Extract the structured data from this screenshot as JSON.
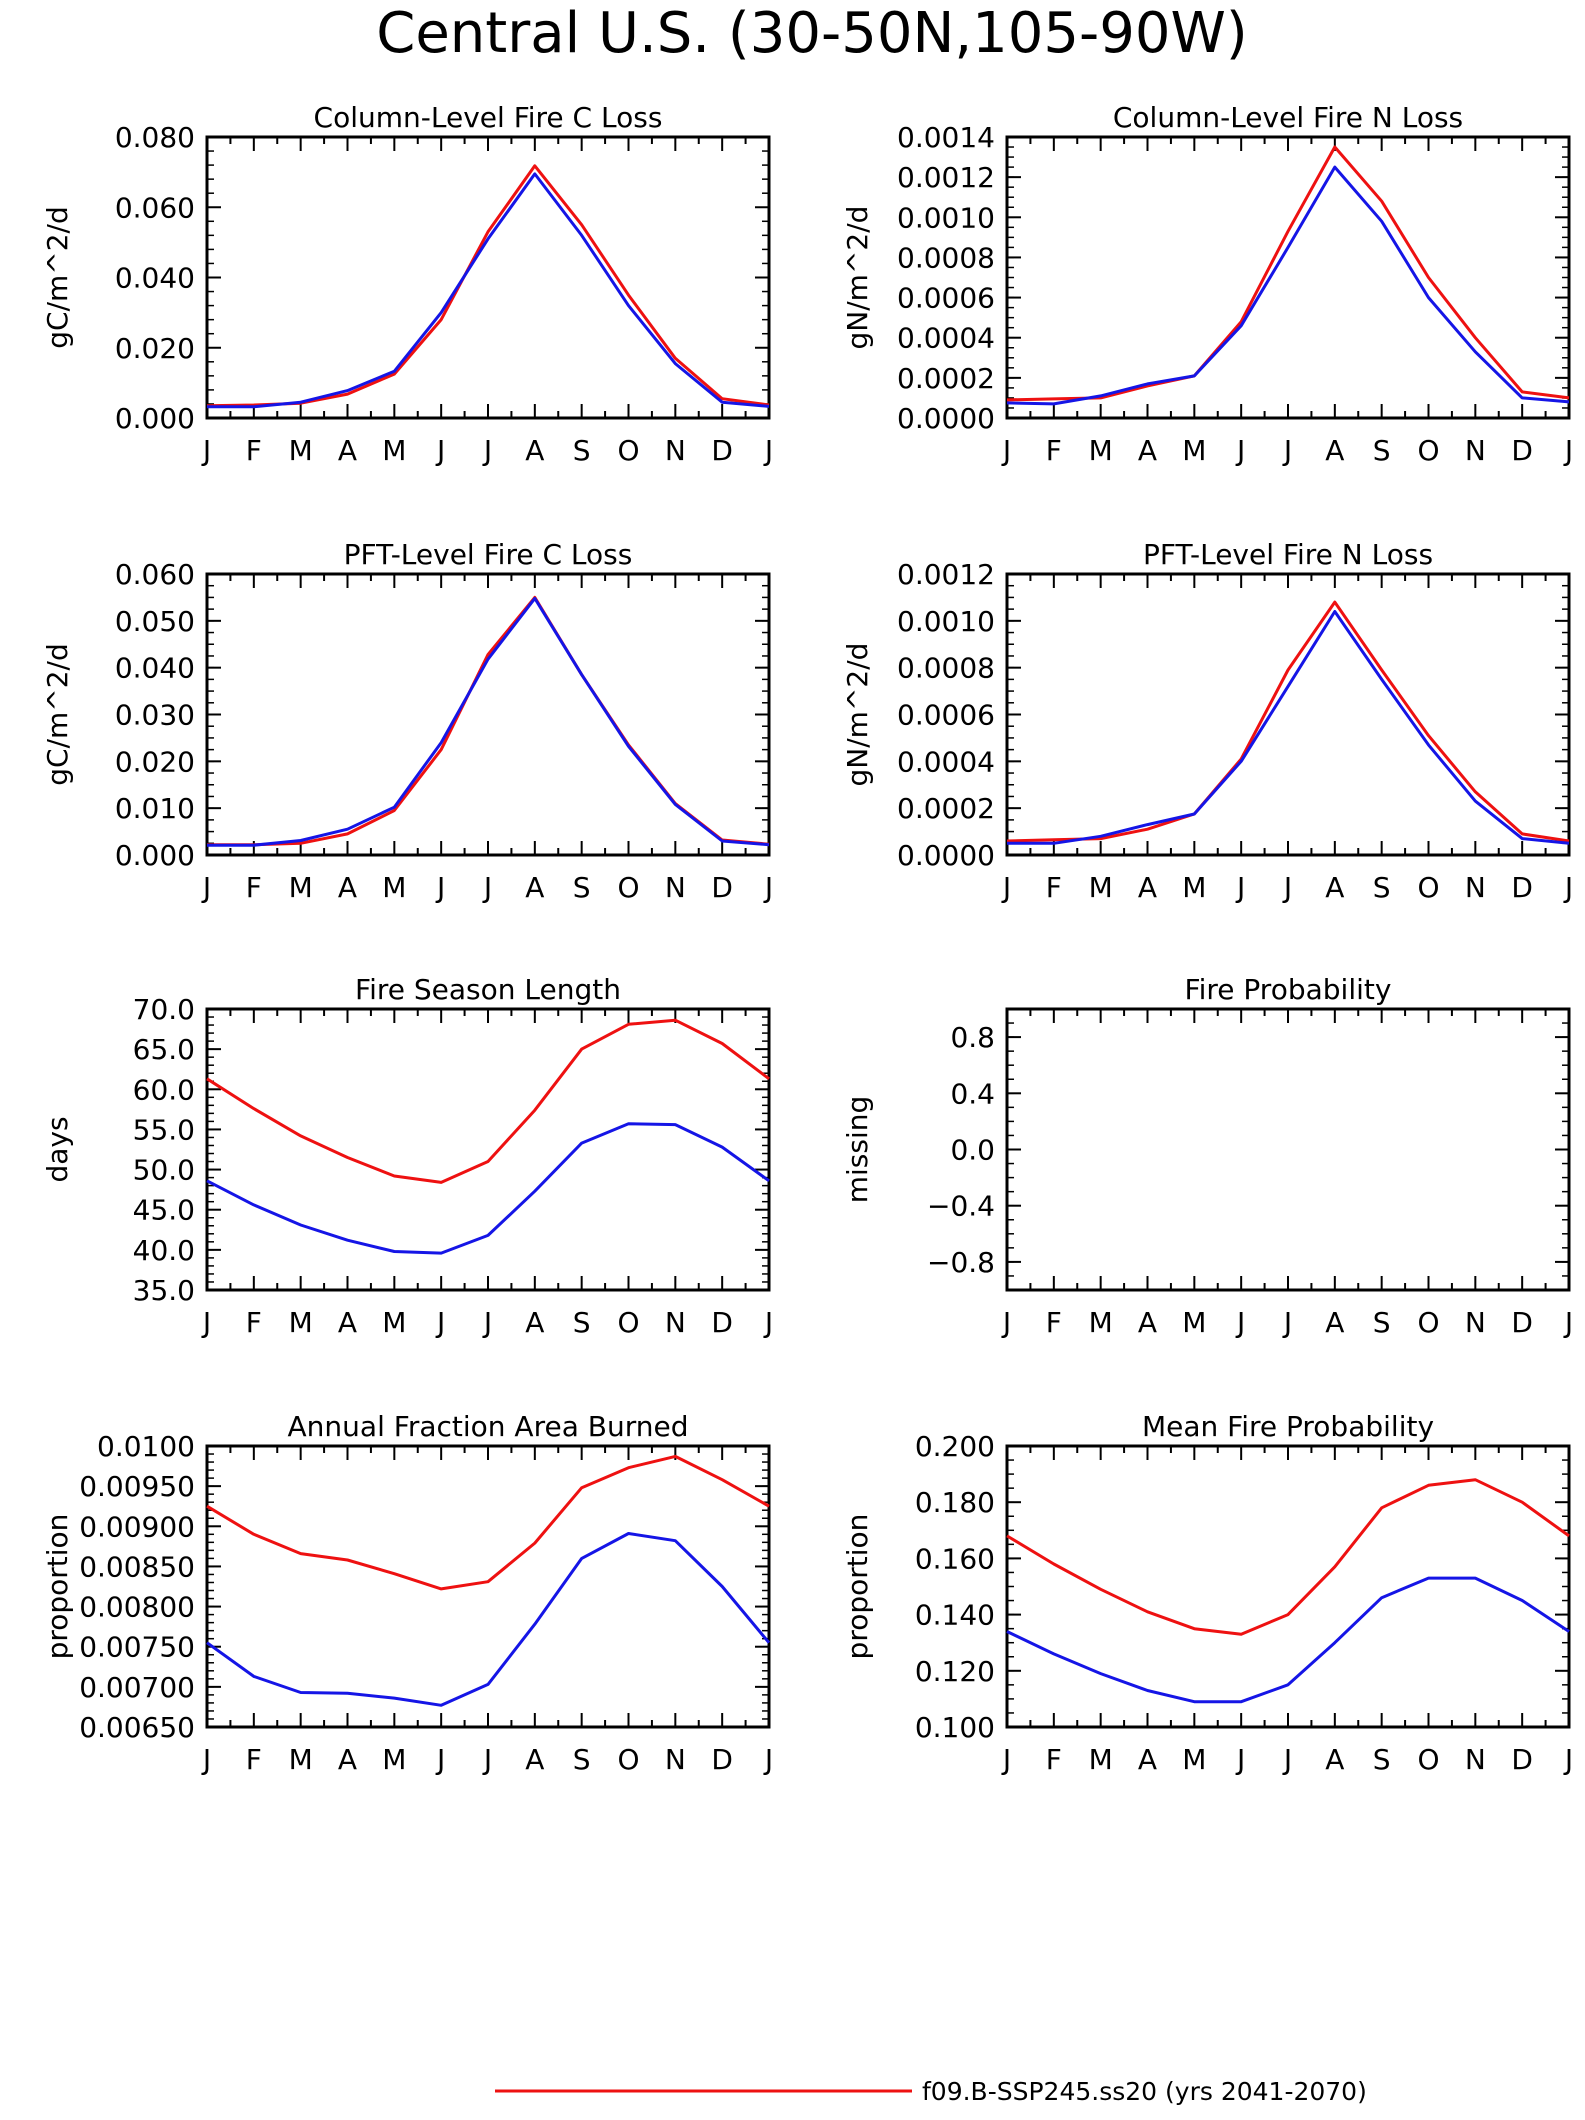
{
  "page_title": "Central U.S. (30-50N,105-90W)",
  "series_colors": [
    "#ee1111",
    "#1515e6"
  ],
  "legend": {
    "entries": [
      {
        "label": "f09.B-SSP245.ss20 (yrs 2041-2070)",
        "color": "#ee1111"
      }
    ]
  },
  "chart_data": [
    {
      "type": "line",
      "title": "Column-Level Fire C Loss",
      "ylabel": "gC/m^2/d",
      "categories": [
        "J",
        "F",
        "M",
        "A",
        "M",
        "J",
        "J",
        "A",
        "S",
        "O",
        "N",
        "D",
        "J"
      ],
      "ylim": [
        0,
        0.08
      ],
      "yticks": [
        0.0,
        0.02,
        0.04,
        0.06,
        0.08
      ],
      "ytick_labels": [
        "0.000",
        "0.020",
        "0.040",
        "0.060",
        "0.080"
      ],
      "yminor": 5,
      "series": [
        {
          "values": [
            0.0035,
            0.0037,
            0.0042,
            0.0068,
            0.0125,
            0.028,
            0.053,
            0.0718,
            0.055,
            0.035,
            0.017,
            0.0055,
            0.0037
          ]
        },
        {
          "values": [
            0.0032,
            0.0032,
            0.0045,
            0.0078,
            0.0133,
            0.03,
            0.051,
            0.0695,
            0.052,
            0.032,
            0.0155,
            0.0045,
            0.0033
          ]
        }
      ]
    },
    {
      "type": "line",
      "title": "Column-Level Fire N Loss",
      "ylabel": "gN/m^2/d",
      "categories": [
        "J",
        "F",
        "M",
        "A",
        "M",
        "J",
        "J",
        "A",
        "S",
        "O",
        "N",
        "D",
        "J"
      ],
      "ylim": [
        0,
        0.0014
      ],
      "yticks": [
        0.0,
        0.0002,
        0.0004,
        0.0006,
        0.0008,
        0.001,
        0.0012,
        0.0014
      ],
      "ytick_labels": [
        "0.0000",
        "0.0002",
        "0.0004",
        "0.0006",
        "0.0008",
        "0.0010",
        "0.0012",
        "0.0014"
      ],
      "yminor": 4,
      "series": [
        {
          "values": [
            9e-05,
            9.5e-05,
            0.0001,
            0.00016,
            0.00021,
            0.00048,
            0.00093,
            0.00135,
            0.00108,
            0.0007,
            0.0004,
            0.00013,
            0.0001
          ]
        },
        {
          "values": [
            7.5e-05,
            7e-05,
            0.00011,
            0.00017,
            0.00021,
            0.00046,
            0.00085,
            0.00125,
            0.00098,
            0.0006,
            0.00033,
            0.0001,
            8e-05
          ]
        }
      ]
    },
    {
      "type": "line",
      "title": "PFT-Level Fire C Loss",
      "ylabel": "gC/m^2/d",
      "categories": [
        "J",
        "F",
        "M",
        "A",
        "M",
        "J",
        "J",
        "A",
        "S",
        "O",
        "N",
        "D",
        "J"
      ],
      "ylim": [
        0,
        0.06
      ],
      "yticks": [
        0.0,
        0.01,
        0.02,
        0.03,
        0.04,
        0.05,
        0.06
      ],
      "ytick_labels": [
        "0.000",
        "0.010",
        "0.020",
        "0.030",
        "0.040",
        "0.050",
        "0.060"
      ],
      "yminor": 4,
      "series": [
        {
          "values": [
            0.0022,
            0.0022,
            0.0025,
            0.0045,
            0.0095,
            0.0225,
            0.0428,
            0.055,
            0.0385,
            0.0235,
            0.011,
            0.0032,
            0.0023
          ]
        },
        {
          "values": [
            0.0021,
            0.0021,
            0.0031,
            0.0055,
            0.0102,
            0.024,
            0.0418,
            0.0548,
            0.0385,
            0.0232,
            0.0108,
            0.003,
            0.0022
          ]
        }
      ]
    },
    {
      "type": "line",
      "title": "PFT-Level Fire N Loss",
      "ylabel": "gN/m^2/d",
      "categories": [
        "J",
        "F",
        "M",
        "A",
        "M",
        "J",
        "J",
        "A",
        "S",
        "O",
        "N",
        "D",
        "J"
      ],
      "ylim": [
        0,
        0.0012
      ],
      "yticks": [
        0.0,
        0.0002,
        0.0004,
        0.0006,
        0.0008,
        0.001,
        0.0012
      ],
      "ytick_labels": [
        "0.0000",
        "0.0002",
        "0.0004",
        "0.0006",
        "0.0008",
        "0.0010",
        "0.0012"
      ],
      "yminor": 4,
      "series": [
        {
          "values": [
            6e-05,
            6.5e-05,
            7e-05,
            0.00011,
            0.000175,
            0.00041,
            0.00079,
            0.00108,
            0.00079,
            0.00051,
            0.00027,
            9e-05,
            6e-05
          ]
        },
        {
          "values": [
            5e-05,
            5e-05,
            8e-05,
            0.00013,
            0.000175,
            0.0004,
            0.00072,
            0.00104,
            0.00075,
            0.00047,
            0.00023,
            7e-05,
            5e-05
          ]
        }
      ]
    },
    {
      "type": "line",
      "title": "Fire Season Length",
      "ylabel": "days",
      "categories": [
        "J",
        "F",
        "M",
        "A",
        "M",
        "J",
        "J",
        "A",
        "S",
        "O",
        "N",
        "D",
        "J"
      ],
      "ylim": [
        35,
        70
      ],
      "yticks": [
        35,
        40,
        45,
        50,
        55,
        60,
        65,
        70
      ],
      "ytick_labels": [
        "35.0",
        "40.0",
        "45.0",
        "50.0",
        "55.0",
        "60.0",
        "65.0",
        "70.0"
      ],
      "yminor": 5,
      "series": [
        {
          "values": [
            61.3,
            57.6,
            54.2,
            51.5,
            49.2,
            48.4,
            51.0,
            57.4,
            65.0,
            68.1,
            68.6,
            65.7,
            61.3
          ]
        },
        {
          "values": [
            48.6,
            45.6,
            43.1,
            41.2,
            39.8,
            39.6,
            41.8,
            47.3,
            53.3,
            55.7,
            55.6,
            52.8,
            48.6
          ]
        }
      ]
    },
    {
      "type": "line",
      "title": "Fire Probability",
      "ylabel": "missing",
      "categories": [
        "J",
        "F",
        "M",
        "A",
        "M",
        "J",
        "J",
        "A",
        "S",
        "O",
        "N",
        "D",
        "J"
      ],
      "ylim": [
        -1.0,
        1.0
      ],
      "yticks": [
        -0.8,
        -0.4,
        0.0,
        0.4,
        0.8
      ],
      "ytick_labels": [
        "−0.8",
        "−0.4",
        "0.0",
        "0.4",
        "0.8"
      ],
      "yminor": 4,
      "series": []
    },
    {
      "type": "line",
      "title": "Annual Fraction Area Burned",
      "ylabel": "proportion",
      "categories": [
        "J",
        "F",
        "M",
        "A",
        "M",
        "J",
        "J",
        "A",
        "S",
        "O",
        "N",
        "D",
        "J"
      ],
      "ylim": [
        0.0065,
        0.01
      ],
      "yticks": [
        0.0065,
        0.007,
        0.0075,
        0.008,
        0.0085,
        0.009,
        0.0095,
        0.01
      ],
      "ytick_labels": [
        "0.00650",
        "0.00700",
        "0.00750",
        "0.00800",
        "0.00850",
        "0.00900",
        "0.00950",
        "0.0100"
      ],
      "yminor": 5,
      "series": [
        {
          "values": [
            0.00925,
            0.0089,
            0.00866,
            0.00858,
            0.00841,
            0.00822,
            0.00831,
            0.00879,
            0.00948,
            0.00973,
            0.00987,
            0.00958,
            0.00925
          ]
        },
        {
          "values": [
            0.00755,
            0.00713,
            0.00693,
            0.00692,
            0.00686,
            0.00677,
            0.00703,
            0.00778,
            0.0086,
            0.00891,
            0.00882,
            0.00825,
            0.00755
          ]
        }
      ]
    },
    {
      "type": "line",
      "title": "Mean Fire Probability",
      "ylabel": "proportion",
      "categories": [
        "J",
        "F",
        "M",
        "A",
        "M",
        "J",
        "J",
        "A",
        "S",
        "O",
        "N",
        "D",
        "J"
      ],
      "ylim": [
        0.1,
        0.2
      ],
      "yticks": [
        0.1,
        0.12,
        0.14,
        0.16,
        0.18,
        0.2
      ],
      "ytick_labels": [
        "0.100",
        "0.120",
        "0.140",
        "0.160",
        "0.180",
        "0.200"
      ],
      "yminor": 4,
      "series": [
        {
          "values": [
            0.168,
            0.158,
            0.149,
            0.141,
            0.135,
            0.133,
            0.14,
            0.157,
            0.178,
            0.186,
            0.188,
            0.18,
            0.168
          ]
        },
        {
          "values": [
            0.134,
            0.126,
            0.119,
            0.113,
            0.109,
            0.109,
            0.115,
            0.13,
            0.146,
            0.153,
            0.153,
            0.145,
            0.134
          ]
        }
      ]
    }
  ]
}
